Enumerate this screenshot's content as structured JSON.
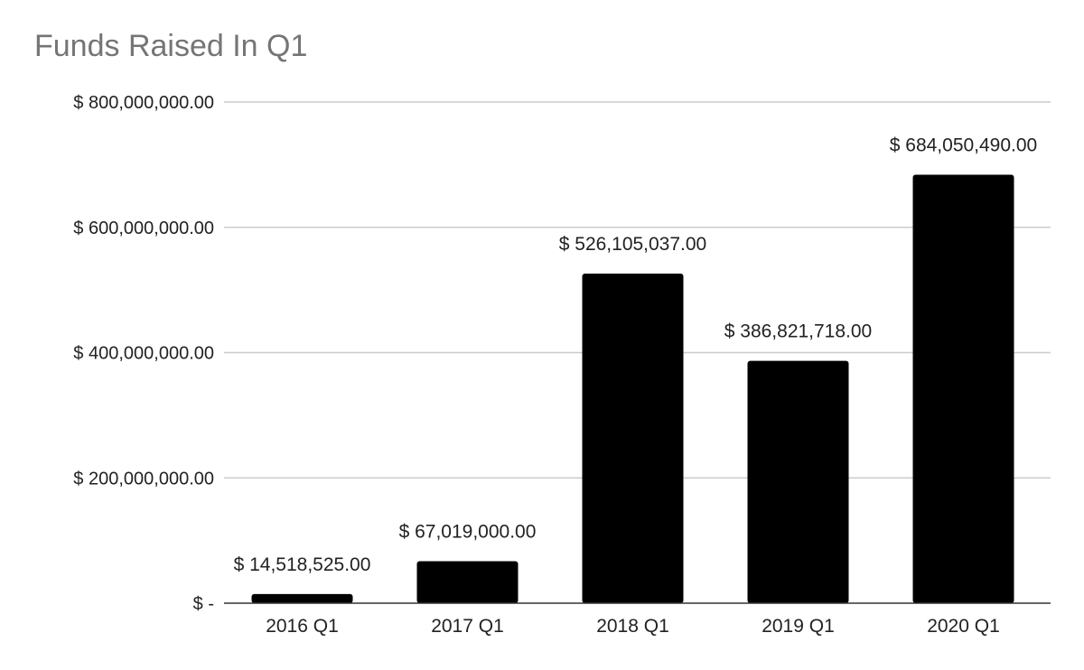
{
  "chart_data": {
    "type": "bar",
    "title": "Funds Raised In Q1",
    "xlabel": "",
    "ylabel": "",
    "categories": [
      "2016 Q1",
      "2017 Q1",
      "2018 Q1",
      "2019 Q1",
      "2020 Q1"
    ],
    "values": [
      14518525,
      67019000,
      526105037,
      386821718,
      684050490
    ],
    "data_labels": [
      "$ 14,518,525.00",
      "$ 67,019,000.00",
      "$ 526,105,037.00",
      "$ 386,821,718.00",
      "$ 684,050,490.00"
    ],
    "ylim": [
      0,
      800000000
    ],
    "yticks": [
      0,
      200000000,
      400000000,
      600000000,
      800000000
    ],
    "ytick_labels": [
      "$ -",
      "$ 200,000,000.00",
      "$ 400,000,000.00",
      "$ 600,000,000.00",
      "$ 800,000,000.00"
    ],
    "grid": true,
    "legend": "none",
    "colors": {
      "bar": "#000000",
      "grid": "#cccccc",
      "axis": "#333333",
      "title": "#757575"
    }
  }
}
